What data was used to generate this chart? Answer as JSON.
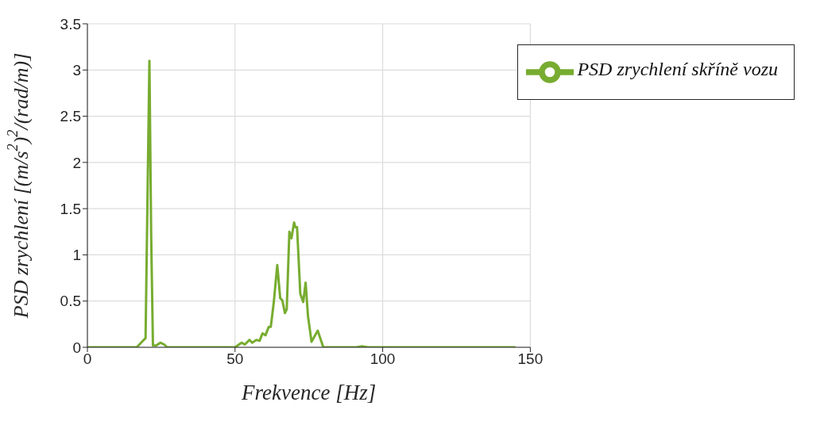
{
  "chart_data": {
    "type": "line",
    "xlabel": "Frekvence [Hz]",
    "ylabel": "PSD zrychlení [(m/s$^{2}$)$^{2}$/(rad/m)]",
    "xlim": [
      0,
      150
    ],
    "xticks": [
      0,
      50,
      100,
      150
    ],
    "ylim": [
      0,
      3.5
    ],
    "yticks": [
      0,
      0.5,
      1,
      1.5,
      2,
      2.5,
      3,
      3.5
    ],
    "grid": true,
    "legend": "top right",
    "marker": "none",
    "line_style": "solid",
    "series": [
      {
        "name": "PSD zrychlení skříně vozu",
        "color": "#77ac30",
        "x": [
          0,
          10,
          16.7,
          18.5,
          19.7,
          20.3,
          21,
          21.6,
          22.2,
          23.3,
          24.7,
          26,
          27,
          30,
          40,
          50,
          52.2,
          53.3,
          54.9,
          55.8,
          57.2,
          58.3,
          59.3,
          60.3,
          61.4,
          62.1,
          63.1,
          64.3,
          65.3,
          66,
          66.9,
          67.5,
          68.4,
          69.1,
          70,
          70.4,
          71,
          72.1,
          73.1,
          73.9,
          74.7,
          75.9,
          78,
          79.9,
          85,
          91,
          93,
          95,
          110,
          130,
          145
        ],
        "values": [
          0,
          0,
          0,
          0.06,
          0.1,
          1.5,
          3.1,
          1.2,
          0.02,
          0.02,
          0.05,
          0.03,
          0,
          0,
          0,
          0,
          0.05,
          0.03,
          0.08,
          0.05,
          0.08,
          0.07,
          0.15,
          0.13,
          0.22,
          0.22,
          0.48,
          0.89,
          0.53,
          0.51,
          0.37,
          0.41,
          1.25,
          1.18,
          1.35,
          1.3,
          1.3,
          0.58,
          0.49,
          0.7,
          0.34,
          0.06,
          0.18,
          0,
          0,
          0,
          0.01,
          0,
          0,
          0,
          0
        ]
      }
    ]
  }
}
